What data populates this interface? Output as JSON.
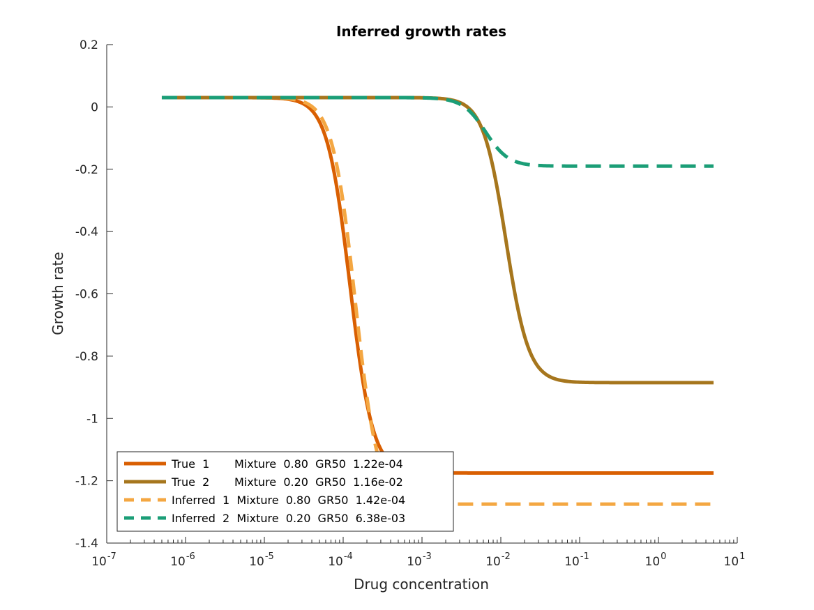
{
  "chart_data": {
    "type": "line",
    "title": "Inferred growth rates",
    "xlabel": "Drug concentration",
    "ylabel": "Growth rate",
    "xscale": "log",
    "xlim": [
      1e-07,
      10
    ],
    "ylim": [
      -1.4,
      0.2
    ],
    "grid": false,
    "legend_position": "bottom-left",
    "yticks": [
      "0.2",
      "0",
      "-0.2",
      "-0.4",
      "-0.6",
      "-0.8",
      "-1",
      "-1.2",
      "-1.4"
    ],
    "xticks": [
      {
        "base": "10",
        "exp": "-7"
      },
      {
        "base": "10",
        "exp": "-6"
      },
      {
        "base": "10",
        "exp": "-5"
      },
      {
        "base": "10",
        "exp": "-4"
      },
      {
        "base": "10",
        "exp": "-3"
      },
      {
        "base": "10",
        "exp": "-2"
      },
      {
        "base": "10",
        "exp": "-1"
      },
      {
        "base": "10",
        "exp": "0"
      },
      {
        "base": "10",
        "exp": "1"
      }
    ],
    "x_range": [
      5e-07,
      5
    ],
    "series": [
      {
        "name": "True  1       Mixture  0.80  GR50  1.22e-04",
        "style": "solid",
        "color": "#D95F02",
        "top": 0.03,
        "bottom": -1.175,
        "midpoint": 0.000122,
        "hill": 3
      },
      {
        "name": "True  2       Mixture  0.20  GR50  1.16e-02",
        "style": "solid",
        "color": "#A6761D",
        "top": 0.03,
        "bottom": -0.885,
        "midpoint": 0.0116,
        "hill": 3
      },
      {
        "name": "Inferred  1  Mixture  0.80  GR50  1.42e-04",
        "style": "dashed",
        "color": "#F4A742",
        "top": 0.03,
        "bottom": -1.275,
        "midpoint": 0.000142,
        "hill": 3
      },
      {
        "name": "Inferred  2  Mixture  0.20  GR50  6.38e-03",
        "style": "dashed",
        "color": "#1B9E77",
        "top": 0.03,
        "bottom": -0.19,
        "midpoint": 0.0064,
        "hill": 3
      }
    ]
  }
}
